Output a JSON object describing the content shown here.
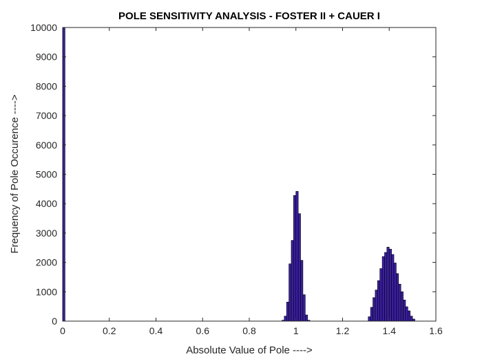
{
  "chart_data": {
    "type": "bar",
    "title": "POLE SENSITIVITY ANALYSIS - FOSTER II + CAUER I",
    "xlabel": "Absolute Value of Pole ---->",
    "ylabel": "Frequency of Pole Occurence ---->",
    "xlim": [
      0,
      1.6
    ],
    "ylim": [
      0,
      10000
    ],
    "xticks": [
      "0",
      "0.2",
      "0.4",
      "0.6",
      "0.8",
      "1",
      "1.2",
      "1.4",
      "1.6"
    ],
    "yticks": [
      "0",
      "1000",
      "2000",
      "3000",
      "4000",
      "5000",
      "6000",
      "7000",
      "8000",
      "9000",
      "10000"
    ],
    "bin_width": 0.01,
    "bar_color": "#3a1fa0",
    "edge_color": "#000000",
    "grid": false,
    "bins": [
      {
        "x": 0.005,
        "value": 10000
      },
      {
        "x": 0.945,
        "value": 30
      },
      {
        "x": 0.955,
        "value": 170
      },
      {
        "x": 0.965,
        "value": 650
      },
      {
        "x": 0.975,
        "value": 1950
      },
      {
        "x": 0.985,
        "value": 2750
      },
      {
        "x": 0.995,
        "value": 4280
      },
      {
        "x": 1.005,
        "value": 4420
      },
      {
        "x": 1.015,
        "value": 3660
      },
      {
        "x": 1.025,
        "value": 2070
      },
      {
        "x": 1.035,
        "value": 900
      },
      {
        "x": 1.045,
        "value": 210
      },
      {
        "x": 1.055,
        "value": 30
      },
      {
        "x": 1.315,
        "value": 150
      },
      {
        "x": 1.325,
        "value": 470
      },
      {
        "x": 1.335,
        "value": 800
      },
      {
        "x": 1.345,
        "value": 1060
      },
      {
        "x": 1.355,
        "value": 1380
      },
      {
        "x": 1.365,
        "value": 1790
      },
      {
        "x": 1.375,
        "value": 2200
      },
      {
        "x": 1.385,
        "value": 2340
      },
      {
        "x": 1.395,
        "value": 2520
      },
      {
        "x": 1.405,
        "value": 2450
      },
      {
        "x": 1.415,
        "value": 2270
      },
      {
        "x": 1.425,
        "value": 1980
      },
      {
        "x": 1.435,
        "value": 1620
      },
      {
        "x": 1.445,
        "value": 1260
      },
      {
        "x": 1.455,
        "value": 1000
      },
      {
        "x": 1.465,
        "value": 720
      },
      {
        "x": 1.475,
        "value": 490
      },
      {
        "x": 1.485,
        "value": 350
      },
      {
        "x": 1.495,
        "value": 170
      },
      {
        "x": 1.505,
        "value": 70
      }
    ]
  }
}
